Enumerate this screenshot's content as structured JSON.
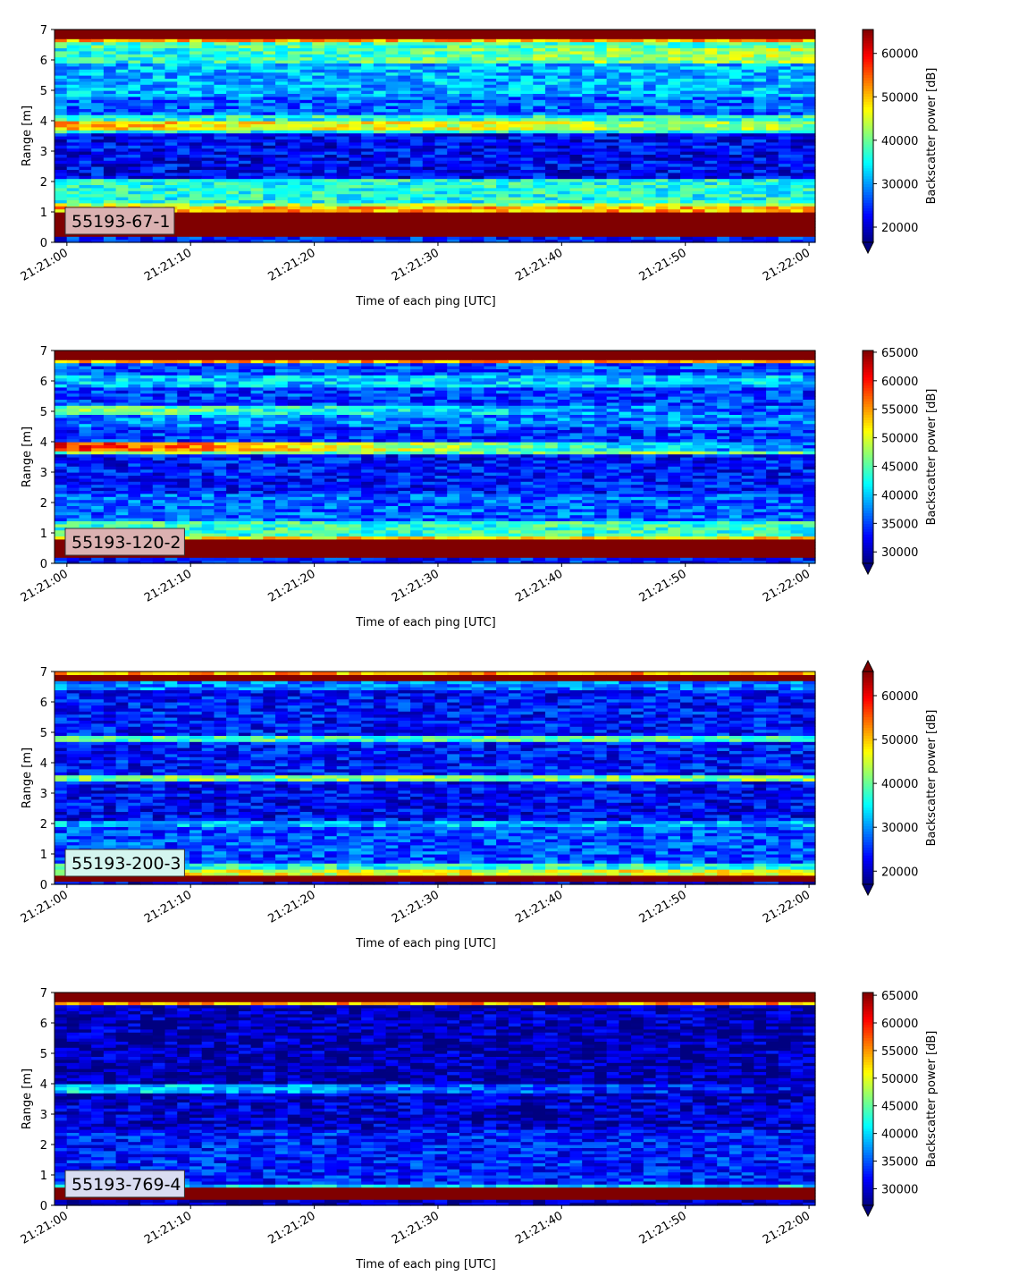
{
  "chart_data": [
    {
      "type": "heatmap",
      "panel_label": "55193-67-1",
      "label_box_color": "#dbb1b1",
      "xlabel": "Time of each ping [UTC]",
      "ylabel": "Range [m]",
      "xticks": [
        "21:21:00",
        "21:21:10",
        "21:21:20",
        "21:21:30",
        "21:21:40",
        "21:21:50",
        "21:22:00"
      ],
      "xlim_seconds": [
        -1,
        60.5
      ],
      "ylim": [
        0,
        7
      ],
      "yticks": [
        0,
        1,
        2,
        3,
        4,
        5,
        6,
        7
      ],
      "colormap": "jet",
      "colorbar_label": "Backscatter power [dB]",
      "colorbar_range": [
        16500,
        65500
      ],
      "colorbar_ticks": [
        20000,
        30000,
        40000,
        50000,
        60000
      ],
      "colorbar_extend": "min",
      "bands": [
        {
          "from": 0.0,
          "to": 0.2,
          "level": 0.15
        },
        {
          "from": 0.2,
          "to": 1.05,
          "level": 1.0
        },
        {
          "from": 1.05,
          "to": 1.2,
          "level": 0.7
        },
        {
          "from": 1.2,
          "to": 1.35,
          "level": 0.55
        },
        {
          "from": 1.35,
          "to": 2.1,
          "level": 0.4
        },
        {
          "from": 2.1,
          "to": 3.6,
          "level": 0.12
        },
        {
          "from": 3.6,
          "to": 3.75,
          "level": 0.4
        },
        {
          "from": 3.75,
          "to": 4.0,
          "level": 0.68,
          "end": 0.5
        },
        {
          "from": 4.0,
          "to": 4.2,
          "level": 0.4
        },
        {
          "from": 4.2,
          "to": 4.8,
          "level": 0.22
        },
        {
          "from": 4.8,
          "to": 5.2,
          "level": 0.3
        },
        {
          "from": 5.2,
          "to": 5.9,
          "level": 0.3
        },
        {
          "from": 5.9,
          "to": 6.4,
          "level": 0.38,
          "end": 0.55
        },
        {
          "from": 6.4,
          "to": 6.6,
          "level": 0.45
        },
        {
          "from": 6.6,
          "to": 6.68,
          "level": 0.7
        },
        {
          "from": 6.68,
          "to": 7.0,
          "level": 1.0
        }
      ]
    },
    {
      "type": "heatmap",
      "panel_label": "55193-120-2",
      "label_box_color": "#dbb1b1",
      "xlabel": "Time of each ping [UTC]",
      "ylabel": "Range [m]",
      "xticks": [
        "21:21:00",
        "21:21:10",
        "21:21:20",
        "21:21:30",
        "21:21:40",
        "21:21:50",
        "21:22:00"
      ],
      "xlim_seconds": [
        -1,
        60.5
      ],
      "ylim": [
        0,
        7
      ],
      "yticks": [
        0,
        1,
        2,
        3,
        4,
        5,
        6,
        7
      ],
      "colormap": "jet",
      "colorbar_label": "Backscatter power [dB]",
      "colorbar_range": [
        28000,
        65300
      ],
      "colorbar_ticks": [
        30000,
        35000,
        40000,
        45000,
        50000,
        55000,
        60000,
        65000
      ],
      "colorbar_extend": "min",
      "bands": [
        {
          "from": 0.0,
          "to": 0.2,
          "level": 0.15
        },
        {
          "from": 0.2,
          "to": 0.8,
          "level": 1.0
        },
        {
          "from": 0.8,
          "to": 0.95,
          "level": 0.65
        },
        {
          "from": 0.95,
          "to": 1.4,
          "level": 0.42
        },
        {
          "from": 1.4,
          "to": 2.3,
          "level": 0.22
        },
        {
          "from": 2.3,
          "to": 3.6,
          "level": 0.14
        },
        {
          "from": 3.6,
          "to": 3.72,
          "level": 0.5
        },
        {
          "from": 3.72,
          "to": 3.98,
          "level": 0.85,
          "end": 0.2
        },
        {
          "from": 3.98,
          "to": 4.5,
          "level": 0.18
        },
        {
          "from": 4.5,
          "to": 4.95,
          "level": 0.25
        },
        {
          "from": 4.95,
          "to": 5.25,
          "level": 0.5,
          "end": 0.2
        },
        {
          "from": 5.25,
          "to": 5.8,
          "level": 0.18
        },
        {
          "from": 5.8,
          "to": 6.2,
          "level": 0.32
        },
        {
          "from": 6.2,
          "to": 6.62,
          "level": 0.2
        },
        {
          "from": 6.62,
          "to": 6.68,
          "level": 0.7
        },
        {
          "from": 6.68,
          "to": 7.0,
          "level": 1.0
        }
      ]
    },
    {
      "type": "heatmap",
      "panel_label": "55193-200-3",
      "label_box_color": "#d4f5ef",
      "xlabel": "Time of each ping [UTC]",
      "ylabel": "Range [m]",
      "xticks": [
        "21:21:00",
        "21:21:10",
        "21:21:20",
        "21:21:30",
        "21:21:40",
        "21:21:50",
        "21:22:00"
      ],
      "xlim_seconds": [
        -1,
        60.5
      ],
      "ylim": [
        0,
        7
      ],
      "yticks": [
        0,
        1,
        2,
        3,
        4,
        5,
        6,
        7
      ],
      "colormap": "jet",
      "colorbar_label": "Backscatter power [dB]",
      "colorbar_range": [
        17000,
        65500
      ],
      "colorbar_ticks": [
        20000,
        30000,
        40000,
        50000,
        60000
      ],
      "colorbar_extend": "both",
      "bands": [
        {
          "from": 0.0,
          "to": 0.1,
          "level": 0.1
        },
        {
          "from": 0.1,
          "to": 0.35,
          "level": 1.0
        },
        {
          "from": 0.35,
          "to": 0.5,
          "level": 0.6
        },
        {
          "from": 0.5,
          "to": 0.75,
          "level": 0.4
        },
        {
          "from": 0.75,
          "to": 1.9,
          "level": 0.2
        },
        {
          "from": 1.9,
          "to": 2.1,
          "level": 0.3
        },
        {
          "from": 2.1,
          "to": 3.4,
          "level": 0.12
        },
        {
          "from": 3.4,
          "to": 3.6,
          "level": 0.5
        },
        {
          "from": 3.6,
          "to": 4.7,
          "level": 0.14
        },
        {
          "from": 4.7,
          "to": 4.95,
          "level": 0.45
        },
        {
          "from": 4.95,
          "to": 6.4,
          "level": 0.14
        },
        {
          "from": 6.4,
          "to": 6.65,
          "level": 0.25
        },
        {
          "from": 6.65,
          "to": 6.9,
          "level": 0.95
        },
        {
          "from": 6.9,
          "to": 7.0,
          "level": 0.7
        }
      ]
    },
    {
      "type": "heatmap",
      "panel_label": "55193-769-4",
      "label_box_color": "#d9dcf1",
      "xlabel": "Time of each ping [UTC]",
      "ylabel": "Range [m]",
      "xticks": [
        "21:21:00",
        "21:21:10",
        "21:21:20",
        "21:21:30",
        "21:21:40",
        "21:21:50",
        "21:22:00"
      ],
      "xlim_seconds": [
        -1,
        60.5
      ],
      "ylim": [
        0,
        7
      ],
      "yticks": [
        0,
        1,
        2,
        3,
        4,
        5,
        6,
        7
      ],
      "colormap": "jet",
      "colorbar_label": "Backscatter power [dB]",
      "colorbar_range": [
        27000,
        65500
      ],
      "colorbar_ticks": [
        30000,
        35000,
        40000,
        45000,
        50000,
        55000,
        60000,
        65000
      ],
      "colorbar_extend": "min",
      "bands": [
        {
          "from": 0.0,
          "to": 0.25,
          "level": 0.05
        },
        {
          "from": 0.25,
          "to": 0.62,
          "level": 1.0
        },
        {
          "from": 0.62,
          "to": 0.72,
          "level": 0.35
        },
        {
          "from": 0.72,
          "to": 2.5,
          "level": 0.15
        },
        {
          "from": 2.5,
          "to": 3.7,
          "level": 0.07
        },
        {
          "from": 3.7,
          "to": 4.0,
          "level": 0.35,
          "end": 0.1
        },
        {
          "from": 4.0,
          "to": 6.6,
          "level": 0.05
        },
        {
          "from": 6.6,
          "to": 6.68,
          "level": 0.7
        },
        {
          "from": 6.68,
          "to": 7.0,
          "level": 1.0
        }
      ]
    }
  ]
}
